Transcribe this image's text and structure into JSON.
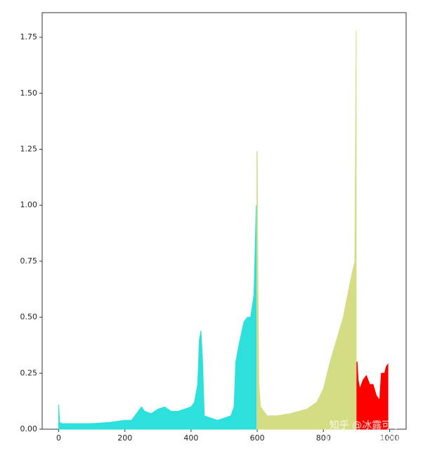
{
  "chart_data": {
    "type": "area",
    "xlim": [
      -50,
      1050
    ],
    "ylim": [
      0,
      1.86
    ],
    "xticks": [
      0,
      200,
      400,
      600,
      800,
      1000
    ],
    "yticks": [
      {
        "value": 0,
        "label": "0.00"
      },
      {
        "value": 0.25,
        "label": "0.25"
      },
      {
        "value": 0.5,
        "label": "0.50"
      },
      {
        "value": 0.75,
        "label": "0.75"
      },
      {
        "value": 1.0,
        "label": "1.00"
      },
      {
        "value": 1.25,
        "label": "1.25"
      },
      {
        "value": 1.5,
        "label": "1.50"
      },
      {
        "value": 1.75,
        "label": "1.75"
      }
    ],
    "grid": false,
    "series": [
      {
        "color": "#2ee0dc",
        "x": [
          0,
          3,
          10,
          50,
          100,
          150,
          200,
          220,
          240,
          250,
          260,
          280,
          300,
          320,
          340,
          360,
          380,
          400,
          410,
          420,
          425,
          430,
          435,
          440,
          460,
          480,
          500,
          520,
          530,
          535,
          545,
          560,
          570,
          580,
          590,
          597
        ],
        "values": [
          0.11,
          0.03,
          0.025,
          0.025,
          0.025,
          0.03,
          0.04,
          0.04,
          0.08,
          0.1,
          0.08,
          0.07,
          0.09,
          0.1,
          0.08,
          0.08,
          0.09,
          0.1,
          0.12,
          0.2,
          0.4,
          0.44,
          0.3,
          0.06,
          0.05,
          0.04,
          0.05,
          0.06,
          0.1,
          0.3,
          0.38,
          0.48,
          0.5,
          0.5,
          0.6,
          1.0
        ]
      },
      {
        "color": "#d4dc84",
        "x": [
          599,
          600,
          602,
          605,
          610,
          630,
          660,
          700,
          750,
          780,
          800,
          820,
          840,
          860,
          880,
          895,
          899
        ],
        "values": [
          1.24,
          1.24,
          0.7,
          0.2,
          0.1,
          0.06,
          0.06,
          0.07,
          0.09,
          0.12,
          0.18,
          0.3,
          0.4,
          0.5,
          0.65,
          0.75,
          1.78
        ]
      },
      {
        "color": "#ff0000",
        "x": [
          901,
          902,
          905,
          910,
          920,
          930,
          940,
          950,
          960,
          970,
          975,
          985,
          990,
          995
        ],
        "values": [
          0.3,
          0.3,
          0.22,
          0.18,
          0.22,
          0.24,
          0.2,
          0.2,
          0.15,
          0.13,
          0.25,
          0.25,
          0.28,
          0.29
        ]
      }
    ],
    "watermark": [
      "知乎 @冰露可乐",
      "CSDN @冰露可乐"
    ]
  }
}
